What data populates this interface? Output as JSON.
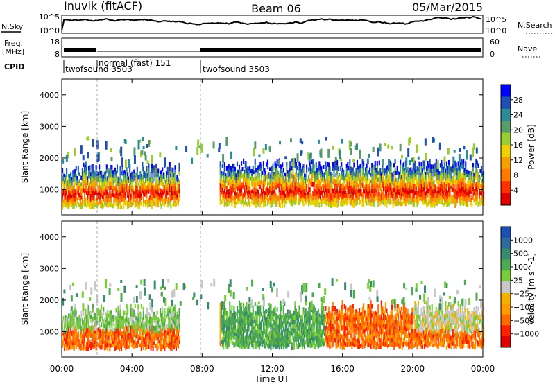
{
  "header": {
    "station": "Inuvik (fitACF)",
    "beam": "Beam 06",
    "date": "05/Mar/2015"
  },
  "summary_panels": {
    "nsky": {
      "label": "N.Sky",
      "ticks": [
        "10^5",
        "10^0"
      ]
    },
    "nsearch": {
      "label": "N.Search",
      "ticks": [
        "10^5",
        "10^0"
      ]
    },
    "freq": {
      "label_line1": "Freq.",
      "label_line2": "[MHz]",
      "ticks": [
        "18",
        "8"
      ]
    },
    "nave": {
      "label": "Nave",
      "ticks": [
        "60",
        "0"
      ]
    },
    "cpid": {
      "label": "CPID",
      "segments": [
        {
          "name": "twofsound 3503",
          "start_hour": 0.0
        },
        {
          "name": "normal (fast) 151",
          "start_hour": 2.0
        },
        {
          "name": "twofsound 3503",
          "start_hour": 8.0
        }
      ]
    }
  },
  "chart_data": [
    {
      "type": "heatmap",
      "quantity": "Power",
      "unit": "dB",
      "ylabel": "Slant Range [km]",
      "ylim": [
        200,
        4500
      ],
      "xlim_hours": [
        0,
        24
      ],
      "yticks": [
        "1000",
        "2000",
        "3000",
        "4000"
      ],
      "colorbar_label": "Power [dB]",
      "colorbar_ticks": [
        "4",
        "8",
        "12",
        "16",
        "20",
        "24",
        "28"
      ],
      "colorbar_colors": [
        "#0000ff",
        "#1f4fb5",
        "#2e8a96",
        "#5a9b6a",
        "#9acd32",
        "#f0d000",
        "#f5a000",
        "#ff7a00",
        "#ff3000",
        "#e00000"
      ],
      "grid": false,
      "mode_change_markers_hours": [
        2,
        8
      ],
      "echo_bands": [
        {
          "start_hour": 0.0,
          "end_hour": 6.7,
          "range_low_km": 450,
          "range_high_km": 1900,
          "peak_power_db": 28
        },
        {
          "start_hour": 9.0,
          "end_hour": 24.0,
          "range_low_km": 500,
          "range_high_km": 2000,
          "peak_power_db": 30
        }
      ]
    },
    {
      "type": "heatmap",
      "quantity": "Velocity",
      "unit": "m s^-1",
      "ylabel": "Slant Range [km]",
      "ylim": [
        200,
        4500
      ],
      "xlim_hours": [
        0,
        24
      ],
      "yticks": [
        "1000",
        "2000",
        "3000",
        "4000"
      ],
      "xticks": [
        "00:00",
        "04:00",
        "08:00",
        "12:00",
        "16:00",
        "20:00",
        "00:00"
      ],
      "xlabel": "Time UT",
      "colorbar_label": "Velocity [m s^-1]",
      "colorbar_ticks": [
        "1000",
        "500",
        "100",
        "25",
        "−25",
        "−100",
        "−500",
        "−1000"
      ],
      "colorbar_colors": [
        "#1f4fb5",
        "#2e6a9a",
        "#3a8a6e",
        "#4daa50",
        "#7acc3a",
        "#c8c8c8",
        "#f5b000",
        "#ff9a00",
        "#ff6a00",
        "#ff2000",
        "#e00000"
      ],
      "grid": false,
      "mode_change_markers_hours": [
        2,
        8
      ]
    }
  ]
}
